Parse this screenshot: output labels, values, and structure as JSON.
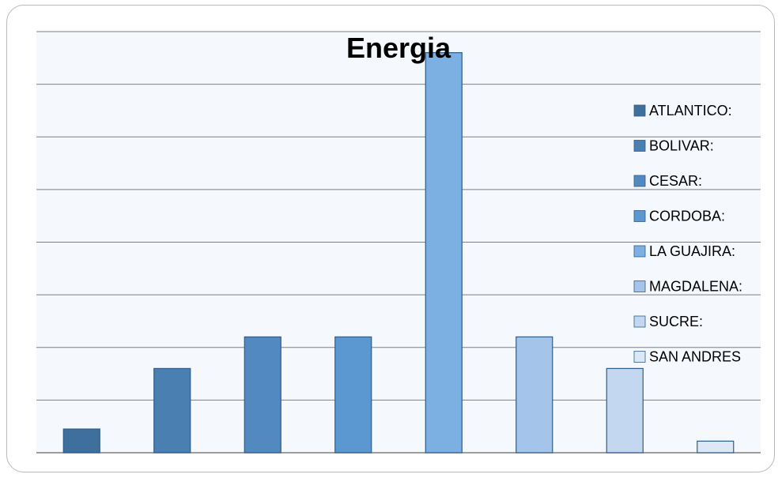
{
  "chart_data": {
    "type": "bar",
    "title": "Energia",
    "xlabel": "",
    "ylabel": "",
    "ylim": [
      0,
      8
    ],
    "grid": true,
    "legend_position": "right",
    "categories": [
      "ATLANTICO:",
      "BOLIVAR:",
      "CESAR:",
      "CORDOBA:",
      "LA GUAJIRA:",
      "MAGDALENA:",
      "SUCRE:",
      "SAN ANDRES"
    ],
    "values": [
      0.45,
      1.6,
      2.2,
      2.2,
      7.6,
      2.2,
      1.6,
      0.22
    ],
    "colors": [
      "#3f6f9c",
      "#4a7fb2",
      "#5289c1",
      "#5b98d1",
      "#7cb0e3",
      "#a4c4ea",
      "#c4d7f1",
      "#dde8f7"
    ],
    "plot_background": "#f5f8fd",
    "gridline_color": "#7f7f7f"
  }
}
